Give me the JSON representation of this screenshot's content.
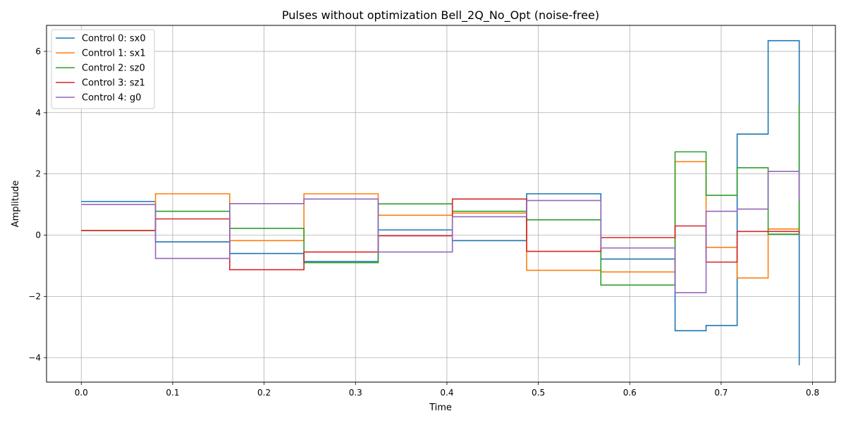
{
  "chart_data": {
    "type": "line",
    "step": "post",
    "title": "Pulses without optimization Bell_2Q_No_Opt (noise-free)",
    "xlabel": "Time",
    "ylabel": "Amplitude",
    "xlim": [
      -0.038,
      0.825
    ],
    "ylim": [
      -4.8,
      6.85
    ],
    "grid": true,
    "legend_position": "upper left",
    "xticks": [
      0.0,
      0.1,
      0.2,
      0.3,
      0.4,
      0.5,
      0.6,
      0.7,
      0.8
    ],
    "xtick_labels": [
      "0.0",
      "0.1",
      "0.2",
      "0.3",
      "0.4",
      "0.5",
      "0.6",
      "0.7",
      "0.8"
    ],
    "yticks": [
      -4,
      -2,
      0,
      2,
      4,
      6
    ],
    "ytick_labels": [
      "−4",
      "−2",
      "0",
      "2",
      "4",
      "6"
    ],
    "x": [
      0.0,
      0.0812,
      0.1624,
      0.2436,
      0.3248,
      0.406,
      0.4872,
      0.5684,
      0.6496,
      0.6835,
      0.7175,
      0.7514,
      0.7854
    ],
    "series": [
      {
        "name": "Control 0: sx0",
        "color": "#1f77b4",
        "values": [
          1.1,
          -0.22,
          -0.6,
          -0.86,
          0.17,
          -0.18,
          1.35,
          -0.78,
          -3.12,
          -2.95,
          3.3,
          6.35,
          -4.25
        ]
      },
      {
        "name": "Control 1: sx1",
        "color": "#ff7f0e",
        "values": [
          0.15,
          1.35,
          -0.18,
          1.35,
          0.65,
          0.72,
          -1.15,
          -1.2,
          2.4,
          -0.4,
          -1.4,
          0.2,
          0.05
        ]
      },
      {
        "name": "Control 2: sz0",
        "color": "#2ca02c",
        "values": [
          0.15,
          0.78,
          0.22,
          -0.9,
          1.02,
          0.78,
          0.5,
          -1.63,
          2.72,
          1.3,
          2.2,
          0.03,
          4.3
        ]
      },
      {
        "name": "Control 3: sz1",
        "color": "#d62728",
        "values": [
          0.15,
          0.53,
          -1.13,
          -0.55,
          -0.02,
          1.18,
          -0.53,
          -0.08,
          0.3,
          -0.88,
          0.12,
          0.12,
          0.05
        ]
      },
      {
        "name": "Control 4: g0",
        "color": "#9467bd",
        "values": [
          1.0,
          -0.76,
          1.03,
          1.18,
          -0.55,
          0.6,
          1.13,
          -0.42,
          -1.88,
          0.78,
          0.85,
          2.08,
          1.1
        ]
      }
    ]
  }
}
